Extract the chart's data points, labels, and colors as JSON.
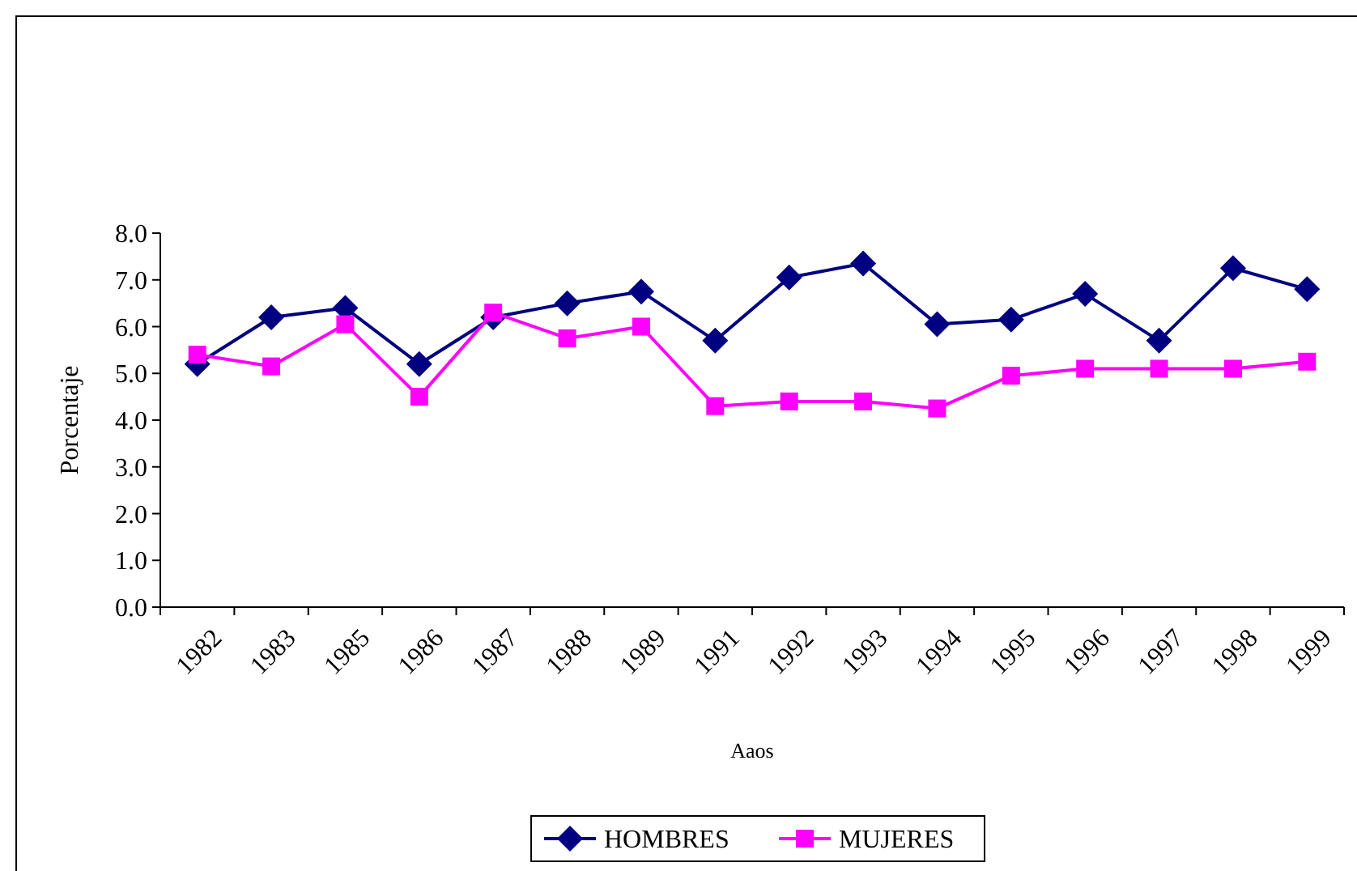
{
  "chart_data": {
    "type": "line",
    "xlabel": "Aaos",
    "ylabel": "Porcentaje",
    "categories": [
      "1982",
      "1983",
      "1985",
      "1986",
      "1987",
      "1988",
      "1989",
      "1991",
      "1992",
      "1993",
      "1994",
      "1995",
      "1996",
      "1997",
      "1998",
      "1999"
    ],
    "series": [
      {
        "name": "HOMBRES",
        "color": "#000080",
        "marker": "diamond",
        "values": [
          5.2,
          6.2,
          6.4,
          5.2,
          6.2,
          6.5,
          6.75,
          5.7,
          7.05,
          7.35,
          6.05,
          6.15,
          6.7,
          5.7,
          7.25,
          6.8
        ]
      },
      {
        "name": "MUJERES",
        "color": "#ff00ff",
        "marker": "square",
        "values": [
          5.4,
          5.15,
          6.05,
          4.5,
          6.3,
          5.75,
          6.0,
          4.3,
          4.4,
          4.4,
          4.25,
          4.95,
          5.1,
          5.1,
          5.1,
          5.25
        ]
      }
    ],
    "ylim": [
      0,
      8
    ],
    "yticks": [
      {
        "value": 0,
        "label": "0.0"
      },
      {
        "value": 1,
        "label": "1.0"
      },
      {
        "value": 2,
        "label": "2.0"
      },
      {
        "value": 3,
        "label": "3.0"
      },
      {
        "value": 4,
        "label": "4.0"
      },
      {
        "value": 5,
        "label": "5.0"
      },
      {
        "value": 6,
        "label": "6.0"
      },
      {
        "value": 7,
        "label": "7.0"
      },
      {
        "value": 8,
        "label": "8.0"
      }
    ],
    "grid": false,
    "legend": "bottom",
    "line_style": "solid"
  }
}
